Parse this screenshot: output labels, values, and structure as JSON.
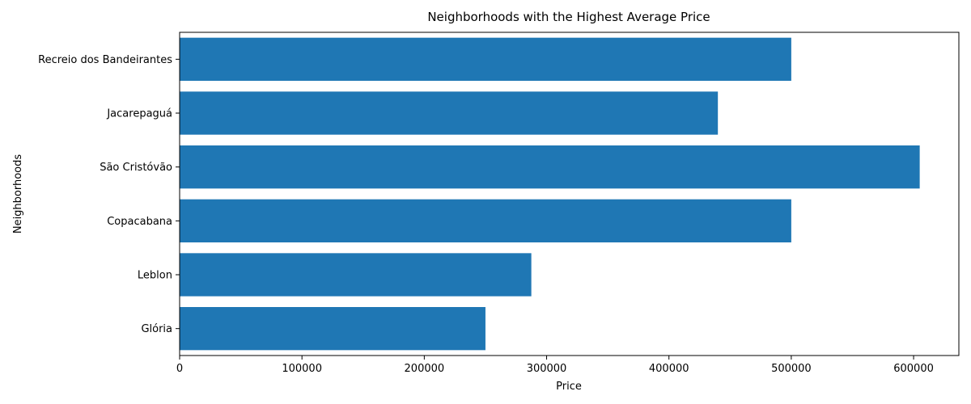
{
  "chart_data": {
    "type": "bar",
    "orientation": "horizontal",
    "title": "Neighborhoods with the Highest Average Price",
    "xlabel": "Price",
    "ylabel": "Neighborhoods",
    "categories": [
      "Recreio dos Bandeirantes",
      "Jacarepaguá",
      "São Cristóvão",
      "Copacabana",
      "Leblon",
      "Glória"
    ],
    "values": [
      500000,
      440000,
      605000,
      500000,
      287500,
      250000
    ],
    "xlim": [
      0,
      637000
    ],
    "xticks": [
      0,
      100000,
      200000,
      300000,
      400000,
      500000,
      600000
    ],
    "xtick_labels": [
      "0",
      "100000",
      "200000",
      "300000",
      "400000",
      "500000",
      "600000"
    ],
    "bar_color": "#1f77b4",
    "grid": false,
    "legend": "none"
  }
}
